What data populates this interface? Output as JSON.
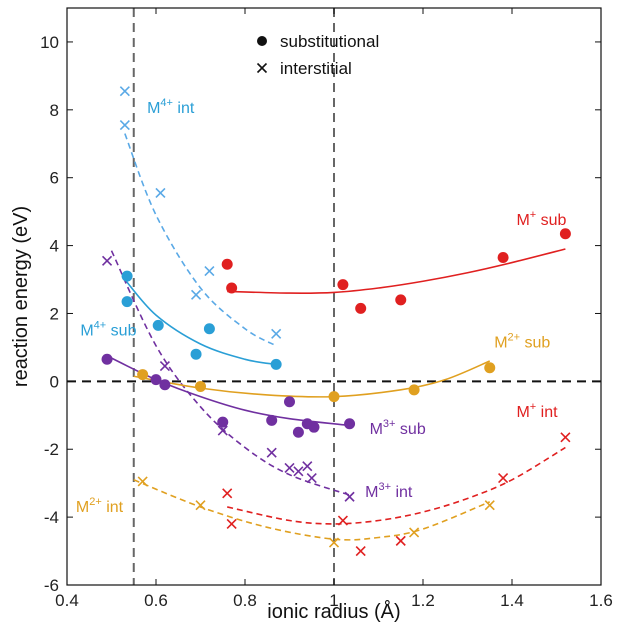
{
  "chart_data": {
    "type": "scatter",
    "xlabel": "ionic radius (Å)",
    "ylabel": "reaction energy (eV)",
    "xlim": [
      0.4,
      1.6
    ],
    "ylim": [
      -6,
      11
    ],
    "xticks": [
      "0.4",
      "0.6",
      "0.8",
      "1",
      "1.2",
      "1.4",
      "1.6"
    ],
    "yticks": [
      "-6",
      "-4",
      "-2",
      "0",
      "2",
      "4",
      "6",
      "8",
      "10"
    ],
    "legend": {
      "placement": "top-center",
      "entries": [
        {
          "marker": "dot",
          "label": "substitutional"
        },
        {
          "marker": "cross",
          "label": "interstitial"
        }
      ]
    },
    "reference_lines": {
      "horizontal_y": 0,
      "vertical_x": [
        0.55,
        1.0
      ]
    },
    "colors": {
      "M4": "#2a9fd6",
      "M4int": "#5aa9e6",
      "M3": "#7030a0",
      "M2": "#e0a020",
      "M1": "#e02020"
    },
    "series": [
      {
        "name": "M4+ sub",
        "base": "M",
        "sup": "4+",
        "suffix": " int",
        "label": "M4+ sub",
        "marker": "dot",
        "colorKey": "M4",
        "points": [
          [
            0.535,
            3.1
          ],
          [
            0.535,
            2.35
          ],
          [
            0.605,
            1.65
          ],
          [
            0.69,
            0.8
          ],
          [
            0.72,
            1.55
          ],
          [
            0.87,
            0.5
          ]
        ],
        "fit": [
          [
            0.53,
            3.0
          ],
          [
            0.6,
            1.95
          ],
          [
            0.7,
            1.1
          ],
          [
            0.8,
            0.65
          ],
          [
            0.87,
            0.5
          ]
        ]
      },
      {
        "name": "M4+ int",
        "label": "M4+ int",
        "marker": "cross",
        "colorKey": "M4int",
        "points": [
          [
            0.53,
            8.55
          ],
          [
            0.53,
            7.55
          ],
          [
            0.61,
            5.55
          ],
          [
            0.72,
            3.25
          ],
          [
            0.69,
            2.55
          ],
          [
            0.87,
            1.4
          ]
        ],
        "fit": [
          [
            0.53,
            7.3
          ],
          [
            0.6,
            4.9
          ],
          [
            0.7,
            2.75
          ],
          [
            0.8,
            1.55
          ],
          [
            0.87,
            1.05
          ]
        ]
      },
      {
        "name": "M3+ sub",
        "label": "M3+ sub",
        "marker": "dot",
        "colorKey": "M3",
        "points": [
          [
            0.49,
            0.65
          ],
          [
            0.6,
            0.05
          ],
          [
            0.62,
            -0.1
          ],
          [
            0.75,
            -1.2
          ],
          [
            0.86,
            -1.15
          ],
          [
            0.9,
            -0.6
          ],
          [
            0.92,
            -1.5
          ],
          [
            0.94,
            -1.25
          ],
          [
            0.955,
            -1.35
          ],
          [
            1.035,
            -1.25
          ]
        ],
        "fit": [
          [
            0.49,
            0.75
          ],
          [
            0.6,
            0.05
          ],
          [
            0.7,
            -0.45
          ],
          [
            0.8,
            -0.85
          ],
          [
            0.9,
            -1.1
          ],
          [
            1.035,
            -1.3
          ]
        ]
      },
      {
        "name": "M3+ int",
        "label": "M3+ int",
        "marker": "cross",
        "colorKey": "M3",
        "points": [
          [
            0.49,
            3.55
          ],
          [
            0.62,
            0.45
          ],
          [
            0.75,
            -1.45
          ],
          [
            0.86,
            -2.1
          ],
          [
            0.9,
            -2.55
          ],
          [
            0.92,
            -2.65
          ],
          [
            0.94,
            -2.5
          ],
          [
            0.95,
            -2.85
          ],
          [
            1.035,
            -3.4
          ]
        ],
        "fit": [
          [
            0.5,
            3.85
          ],
          [
            0.6,
            1.05
          ],
          [
            0.7,
            -0.75
          ],
          [
            0.8,
            -1.95
          ],
          [
            0.9,
            -2.75
          ],
          [
            1.035,
            -3.35
          ]
        ]
      },
      {
        "name": "M2+ sub",
        "label": "M2+ sub",
        "marker": "dot",
        "colorKey": "M2",
        "points": [
          [
            0.57,
            0.2
          ],
          [
            0.7,
            -0.15
          ],
          [
            1.0,
            -0.45
          ],
          [
            1.18,
            -0.25
          ],
          [
            1.35,
            0.4
          ]
        ],
        "fit": [
          [
            0.55,
            0.15
          ],
          [
            0.7,
            -0.2
          ],
          [
            0.85,
            -0.4
          ],
          [
            1.0,
            -0.45
          ],
          [
            1.15,
            -0.25
          ],
          [
            1.25,
            0.05
          ],
          [
            1.35,
            0.6
          ]
        ]
      },
      {
        "name": "M2+ int",
        "label": "M2+ int",
        "marker": "cross",
        "colorKey": "M2",
        "points": [
          [
            0.57,
            -2.95
          ],
          [
            0.7,
            -3.65
          ],
          [
            1.0,
            -4.75
          ],
          [
            1.18,
            -4.45
          ],
          [
            1.35,
            -3.65
          ]
        ],
        "fit": [
          [
            0.55,
            -2.9
          ],
          [
            0.7,
            -3.7
          ],
          [
            0.85,
            -4.3
          ],
          [
            1.0,
            -4.65
          ],
          [
            1.1,
            -4.6
          ],
          [
            1.2,
            -4.35
          ],
          [
            1.35,
            -3.55
          ]
        ]
      },
      {
        "name": "M+ sub",
        "label": "M+ sub",
        "marker": "dot",
        "colorKey": "M1",
        "points": [
          [
            0.76,
            3.45
          ],
          [
            0.77,
            2.75
          ],
          [
            1.02,
            2.85
          ],
          [
            1.06,
            2.15
          ],
          [
            1.15,
            2.4
          ],
          [
            1.38,
            3.65
          ],
          [
            1.52,
            4.35
          ]
        ],
        "fit": [
          [
            0.76,
            2.65
          ],
          [
            0.9,
            2.6
          ],
          [
            1.0,
            2.62
          ],
          [
            1.1,
            2.75
          ],
          [
            1.2,
            2.95
          ],
          [
            1.3,
            3.2
          ],
          [
            1.4,
            3.5
          ],
          [
            1.52,
            3.9
          ]
        ]
      },
      {
        "name": "M+ int",
        "label": "M+ int",
        "marker": "cross",
        "colorKey": "M1",
        "points": [
          [
            0.76,
            -3.3
          ],
          [
            0.77,
            -4.2
          ],
          [
            1.02,
            -4.1
          ],
          [
            1.06,
            -5.0
          ],
          [
            1.15,
            -4.7
          ],
          [
            1.38,
            -2.85
          ],
          [
            1.52,
            -1.65
          ]
        ],
        "fit": [
          [
            0.76,
            -3.7
          ],
          [
            0.9,
            -4.1
          ],
          [
            1.0,
            -4.2
          ],
          [
            1.1,
            -4.1
          ],
          [
            1.2,
            -3.85
          ],
          [
            1.3,
            -3.45
          ],
          [
            1.4,
            -2.9
          ],
          [
            1.52,
            -1.95
          ]
        ]
      }
    ]
  },
  "annotations": [
    {
      "key": "m4int",
      "base": "M",
      "sup": "4+",
      "rest": " int",
      "x": 0.58,
      "y": 7.9,
      "colorKey": "M4"
    },
    {
      "key": "m4sub",
      "base": "M",
      "sup": "4+",
      "rest": " sub",
      "x": 0.43,
      "y": 1.35,
      "colorKey": "M4"
    },
    {
      "key": "m3sub",
      "base": "M",
      "sup": "3+",
      "rest": " sub",
      "x": 1.08,
      "y": -1.55,
      "colorKey": "M3"
    },
    {
      "key": "m3int",
      "base": "M",
      "sup": "3+",
      "rest": " int",
      "x": 1.07,
      "y": -3.4,
      "colorKey": "M3"
    },
    {
      "key": "m2sub",
      "base": "M",
      "sup": "2+",
      "rest": " sub",
      "x": 1.36,
      "y": 1.0,
      "colorKey": "M2"
    },
    {
      "key": "m2int",
      "base": "M",
      "sup": "2+",
      "rest": " int",
      "x": 0.42,
      "y": -3.85,
      "colorKey": "M2"
    },
    {
      "key": "m1sub",
      "base": "M",
      "sup": "+",
      "rest": " sub",
      "x": 1.41,
      "y": 4.6,
      "colorKey": "M1"
    },
    {
      "key": "m1int",
      "base": "M",
      "sup": "+",
      "rest": " int",
      "x": 1.41,
      "y": -1.05,
      "colorKey": "M1"
    }
  ]
}
